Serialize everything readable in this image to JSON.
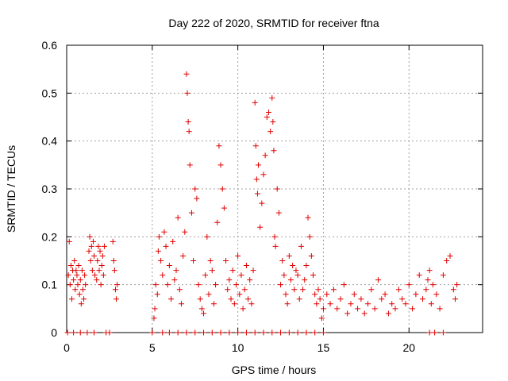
{
  "chart_data": {
    "type": "scatter",
    "title": "Day 222 of 2020, SRMTID for receiver ftna",
    "xlabel": "GPS time / hours",
    "ylabel": "SRMTID / TECUs",
    "xlim": [
      0,
      24.3
    ],
    "ylim": [
      0,
      0.6
    ],
    "xticks": [
      0,
      5,
      10,
      15,
      20
    ],
    "xtick_labels": [
      "0",
      "5",
      "10",
      "15",
      "20"
    ],
    "yticks": [
      0,
      0.1,
      0.2,
      0.3,
      0.4,
      0.5,
      0.6
    ],
    "ytick_labels": [
      "0",
      "0.1",
      "0.2",
      "0.3",
      "0.4",
      "0.5",
      "0.6"
    ],
    "grid": true,
    "marker": "+",
    "color": "#e00000",
    "series": [
      {
        "name": "SRMTID",
        "x": [
          0.1,
          0.15,
          0.2,
          0.25,
          0.3,
          0.35,
          0.4,
          0.45,
          0.5,
          0.55,
          0.6,
          0.65,
          0.7,
          0.75,
          0.8,
          0.85,
          0.9,
          0.95,
          1.0,
          1.05,
          1.1,
          1.3,
          1.35,
          1.4,
          1.45,
          1.5,
          1.55,
          1.6,
          1.65,
          1.75,
          1.8,
          1.85,
          1.9,
          1.95,
          2.0,
          2.05,
          2.1,
          2.15,
          2.2,
          2.7,
          2.75,
          2.8,
          2.85,
          2.9,
          2.95,
          5.1,
          5.15,
          5.2,
          5.3,
          5.35,
          5.4,
          5.5,
          5.6,
          5.7,
          5.8,
          5.9,
          6.0,
          6.1,
          6.2,
          6.3,
          6.4,
          6.5,
          6.6,
          6.7,
          6.8,
          6.9,
          7.0,
          7.05,
          7.1,
          7.15,
          7.2,
          7.3,
          7.4,
          7.5,
          7.6,
          7.7,
          7.8,
          7.9,
          8.0,
          8.1,
          8.2,
          8.3,
          8.4,
          8.5,
          8.6,
          8.7,
          8.8,
          8.9,
          9.0,
          9.1,
          9.2,
          9.3,
          9.4,
          9.5,
          9.6,
          9.7,
          9.8,
          9.9,
          10.0,
          10.1,
          10.2,
          10.3,
          10.4,
          10.5,
          10.6,
          10.7,
          10.8,
          10.9,
          11.0,
          11.05,
          11.1,
          11.15,
          11.2,
          11.3,
          11.4,
          11.5,
          11.6,
          11.7,
          11.8,
          11.9,
          12.0,
          12.05,
          12.1,
          12.15,
          12.2,
          12.3,
          12.4,
          12.5,
          12.6,
          12.7,
          12.8,
          12.9,
          13.0,
          13.1,
          13.2,
          13.3,
          13.4,
          13.5,
          13.6,
          13.7,
          13.8,
          13.9,
          14.0,
          14.1,
          14.2,
          14.3,
          14.4,
          14.5,
          14.6,
          14.7,
          14.8,
          14.9,
          15.0,
          15.2,
          15.4,
          15.6,
          15.8,
          16.0,
          16.2,
          16.4,
          16.6,
          16.8,
          17.0,
          17.2,
          17.4,
          17.6,
          17.8,
          18.0,
          18.2,
          18.4,
          18.6,
          18.8,
          19.0,
          19.2,
          19.4,
          19.6,
          19.8,
          20.0,
          20.2,
          20.4,
          20.6,
          20.8,
          21.0,
          21.1,
          21.2,
          21.3,
          21.4,
          21.6,
          21.8,
          22.0,
          22.2,
          22.4,
          22.6,
          22.7,
          22.8,
          0.05,
          0.4,
          0.8,
          1.2,
          1.6,
          2.3,
          2.5,
          5.0,
          5.6,
          6.0,
          6.5,
          7.0,
          7.5,
          8.0,
          8.5,
          9.0,
          9.5,
          10.0,
          10.5,
          11.0,
          11.5,
          12.0,
          12.5,
          13.0,
          13.5,
          14.0,
          14.5,
          15.0,
          21.2,
          21.5,
          22.0
        ],
        "y": [
          0.12,
          0.19,
          0.1,
          0.14,
          0.07,
          0.13,
          0.11,
          0.15,
          0.09,
          0.13,
          0.12,
          0.1,
          0.14,
          0.08,
          0.11,
          0.06,
          0.13,
          0.09,
          0.07,
          0.12,
          0.1,
          0.17,
          0.2,
          0.15,
          0.18,
          0.13,
          0.19,
          0.16,
          0.12,
          0.11,
          0.15,
          0.18,
          0.13,
          0.17,
          0.1,
          0.14,
          0.16,
          0.12,
          0.18,
          0.19,
          0.15,
          0.13,
          0.09,
          0.07,
          0.1,
          0.03,
          0.05,
          0.1,
          0.08,
          0.17,
          0.2,
          0.15,
          0.12,
          0.21,
          0.18,
          0.1,
          0.14,
          0.07,
          0.19,
          0.11,
          0.13,
          0.24,
          0.09,
          0.06,
          0.16,
          0.21,
          0.54,
          0.5,
          0.44,
          0.42,
          0.35,
          0.25,
          0.15,
          0.3,
          0.28,
          0.1,
          0.07,
          0.05,
          0.04,
          0.12,
          0.2,
          0.08,
          0.15,
          0.13,
          0.06,
          0.1,
          0.23,
          0.39,
          0.35,
          0.3,
          0.26,
          0.15,
          0.09,
          0.11,
          0.07,
          0.13,
          0.06,
          0.1,
          0.16,
          0.08,
          0.12,
          0.05,
          0.09,
          0.14,
          0.07,
          0.11,
          0.06,
          0.13,
          0.48,
          0.39,
          0.32,
          0.29,
          0.35,
          0.22,
          0.27,
          0.33,
          0.37,
          0.45,
          0.46,
          0.42,
          0.49,
          0.44,
          0.38,
          0.2,
          0.18,
          0.3,
          0.25,
          0.1,
          0.15,
          0.12,
          0.08,
          0.06,
          0.16,
          0.11,
          0.14,
          0.09,
          0.13,
          0.12,
          0.07,
          0.18,
          0.09,
          0.11,
          0.14,
          0.24,
          0.2,
          0.16,
          0.12,
          0.08,
          0.06,
          0.09,
          0.07,
          0.03,
          0.05,
          0.08,
          0.06,
          0.09,
          0.05,
          0.07,
          0.1,
          0.04,
          0.06,
          0.08,
          0.05,
          0.07,
          0.04,
          0.06,
          0.09,
          0.05,
          0.11,
          0.07,
          0.08,
          0.04,
          0.06,
          0.05,
          0.09,
          0.07,
          0.06,
          0.1,
          0.05,
          0.08,
          0.12,
          0.07,
          0.09,
          0.11,
          0.13,
          0.06,
          0.1,
          0.08,
          0.05,
          0.12,
          0.15,
          0.16,
          0.09,
          0.07,
          0.1,
          0.0,
          0.0,
          0.0,
          0.0,
          0.0,
          0.0,
          0.0,
          0.0,
          0.0,
          0.0,
          0.0,
          0.0,
          0.0,
          0.0,
          0.0,
          0.0,
          0.0,
          0.0,
          0.0,
          0.0,
          0.0,
          0.0,
          0.0,
          0.0,
          0.0,
          0.0,
          0.0,
          0.0,
          0.0,
          0.0,
          0.0
        ]
      }
    ]
  }
}
